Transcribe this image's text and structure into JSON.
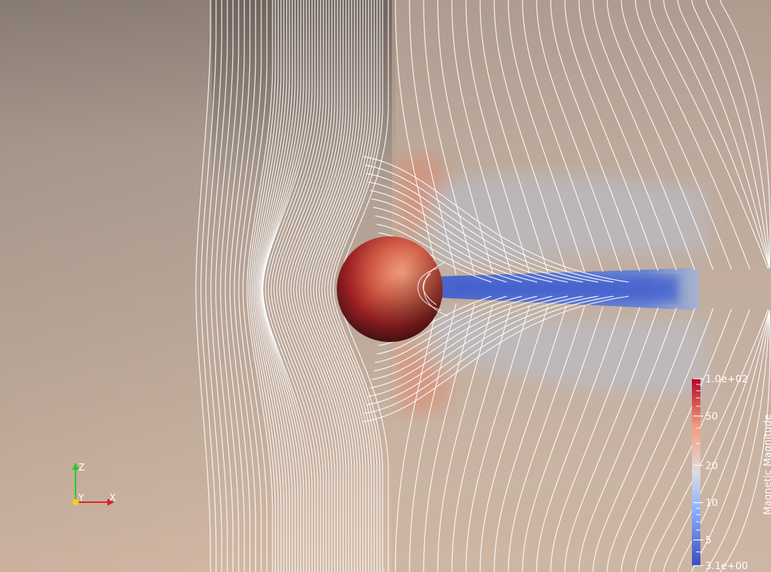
{
  "orientation_axes": {
    "z_label": "Z",
    "y_label": "Y",
    "x_label": "X"
  },
  "scalar_bar": {
    "title": "Magnetic Magnitude",
    "scale": "log",
    "range": [
      3.1,
      100
    ],
    "ticks": [
      {
        "value": 100,
        "label": "1.0e+02"
      },
      {
        "value": 50,
        "label": "50"
      },
      {
        "value": 20,
        "label": "20"
      },
      {
        "value": 10,
        "label": "10"
      },
      {
        "value": 5,
        "label": "5"
      },
      {
        "value": 3.1,
        "label": "3.1e+00"
      }
    ],
    "colors": {
      "low": "#3b4cc0",
      "mid": "#dddddd",
      "high": "#b40426"
    }
  }
}
